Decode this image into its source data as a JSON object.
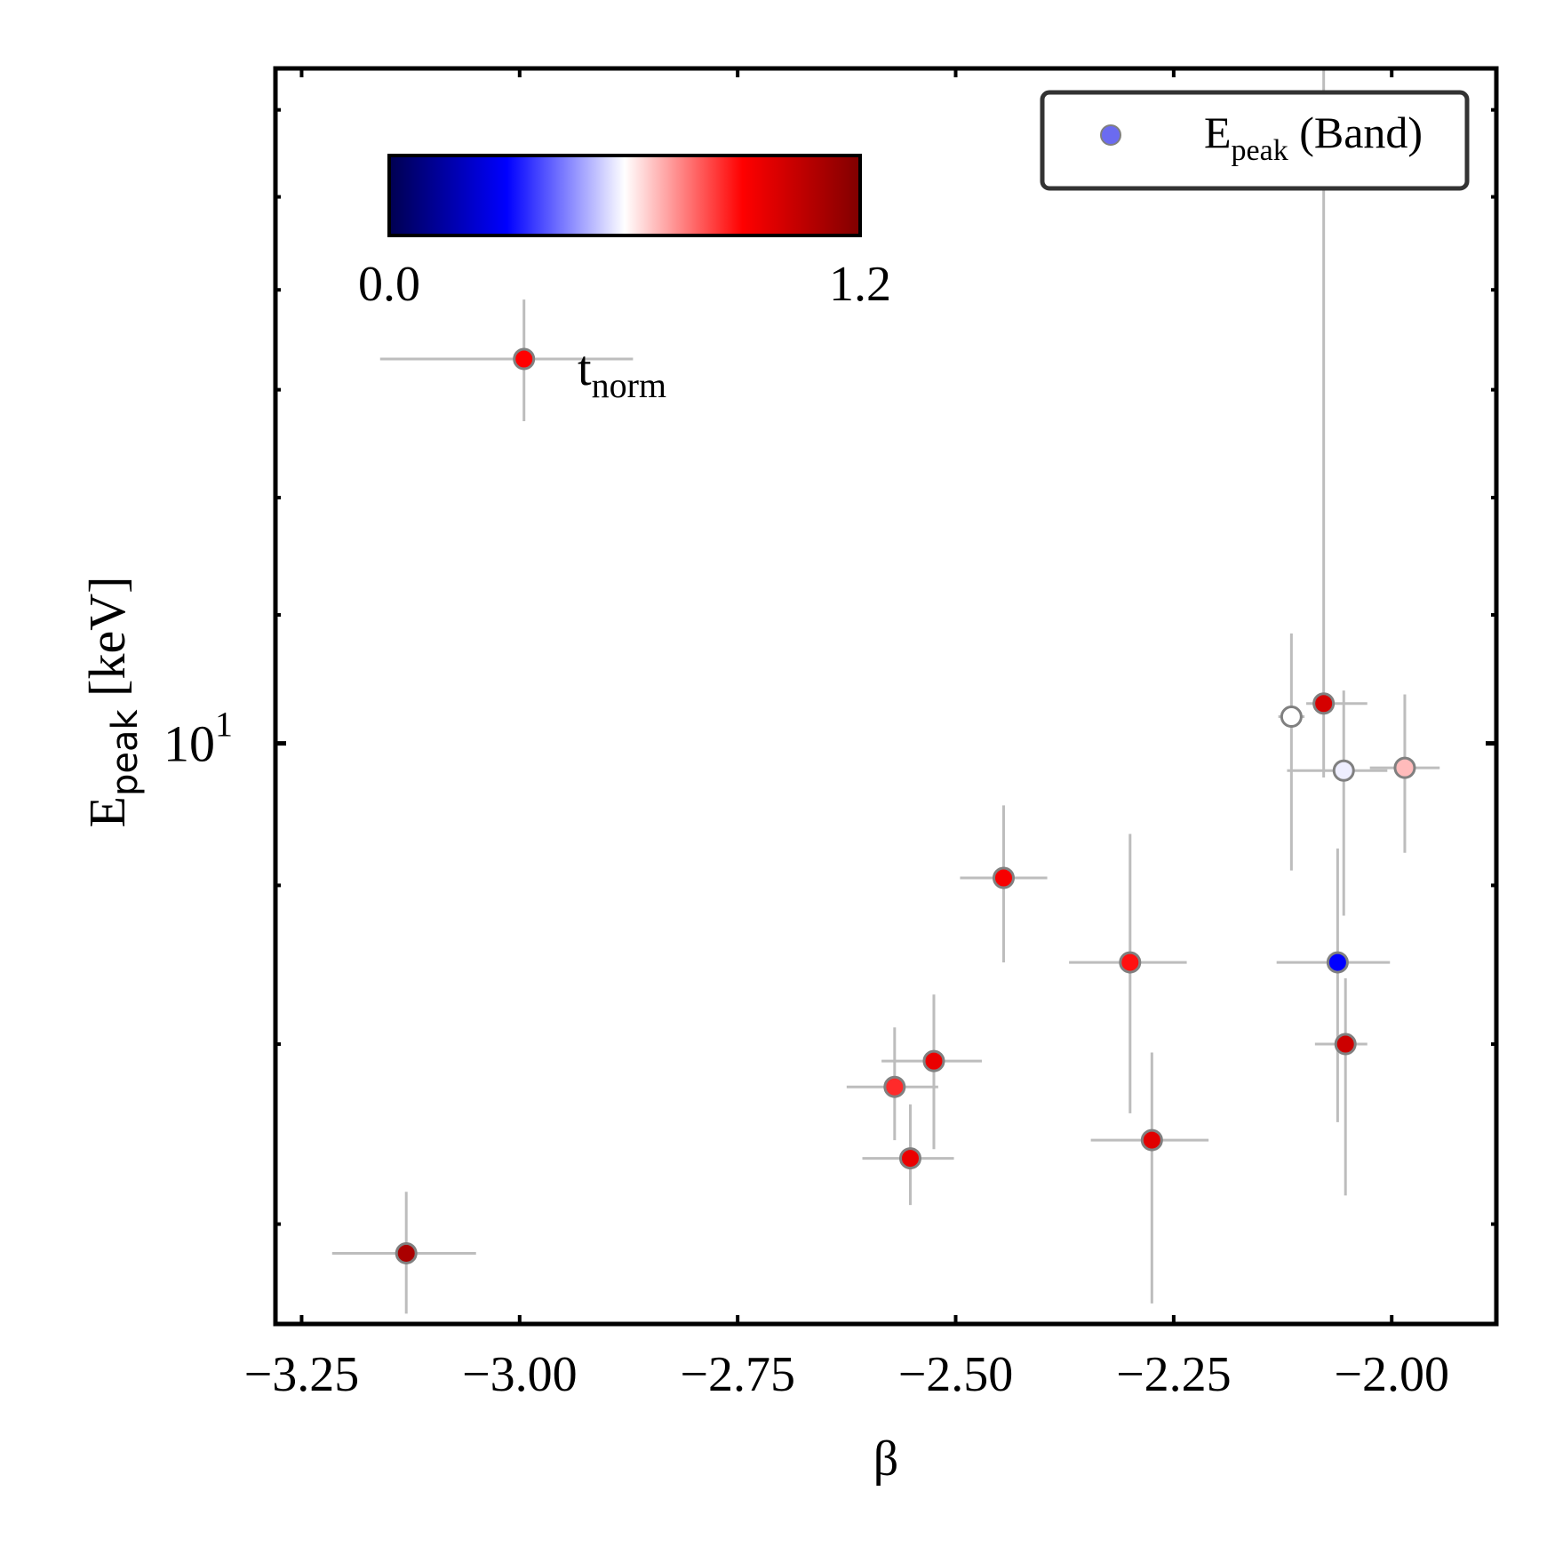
{
  "chart_data": {
    "type": "scatter",
    "title": "",
    "xlabel": "β",
    "ylabel": {
      "main": "E",
      "sub": "peak",
      "unit": " [keV]"
    },
    "xlim": [
      -3.28,
      -1.88
    ],
    "ylim": [
      6.5,
      16.5
    ],
    "yscale": "log",
    "xticks": [
      {
        "value": -3.25,
        "label": "−3.25"
      },
      {
        "value": -3.0,
        "label": "−3.00"
      },
      {
        "value": -2.75,
        "label": "−2.75"
      },
      {
        "value": -2.5,
        "label": "−2.50"
      },
      {
        "value": -2.25,
        "label": "−2.25"
      },
      {
        "value": -2.0,
        "label": "−2.00"
      }
    ],
    "yticks_major": [
      {
        "value": 10,
        "base": "10",
        "exp": "1"
      }
    ],
    "yticks_minor": [
      7,
      8,
      9,
      11,
      12,
      13,
      14,
      15,
      16
    ],
    "legend": {
      "label_main": "E",
      "label_sub": "peak",
      "label_rest": " (Band)",
      "marker_color": "#6b6bf0",
      "placement": "top-right"
    },
    "colorbar": {
      "label_main": "t",
      "label_sub": "norm",
      "min": 0.0,
      "max": 1.2,
      "min_label": "0.0",
      "max_label": "1.2",
      "colormap": "seismic",
      "stops": [
        "#000050",
        "#0000ff",
        "#ffffff",
        "#ff0000",
        "#800000"
      ],
      "placement": "top-left inset"
    },
    "errorbar_color": "#bdbdbd",
    "marker_edge_color": "#808080",
    "points": [
      {
        "x": -3.13,
        "y": 6.85,
        "xerr": [
          0.085,
          0.08
        ],
        "yerr": [
          0.3,
          0.32
        ],
        "t": 1.1
      },
      {
        "x": -2.995,
        "y": 13.3,
        "xerr": [
          0.165,
          0.125
        ],
        "yerr": [
          0.6,
          0.6
        ],
        "t": 0.9
      },
      {
        "x": -2.57,
        "y": 7.75,
        "xerr": [
          0.055,
          0.05
        ],
        "yerr": [
          0.3,
          0.35
        ],
        "t": 0.85
      },
      {
        "x": -2.552,
        "y": 7.35,
        "xerr": [
          0.055,
          0.05
        ],
        "yerr": [
          0.25,
          0.3
        ],
        "t": 0.95
      },
      {
        "x": -2.525,
        "y": 7.9,
        "xerr": [
          0.06,
          0.055
        ],
        "yerr": [
          0.5,
          0.4
        ],
        "t": 0.95
      },
      {
        "x": -2.445,
        "y": 9.05,
        "xerr": [
          0.05,
          0.05
        ],
        "yerr": [
          0.55,
          0.5
        ],
        "t": 0.92
      },
      {
        "x": -2.3,
        "y": 8.5,
        "xerr": [
          0.07,
          0.065
        ],
        "yerr": [
          0.9,
          0.85
        ],
        "t": 0.88
      },
      {
        "x": -2.275,
        "y": 7.45,
        "xerr": [
          0.07,
          0.065
        ],
        "yerr": [
          0.85,
          0.5
        ],
        "t": 0.97
      },
      {
        "x": -2.115,
        "y": 10.2,
        "xerr": [
          0.015,
          0.015
        ],
        "yerr": [
          1.1,
          0.65
        ],
        "t": 0.6
      },
      {
        "x": -2.078,
        "y": 10.3,
        "xerr": [
          0.02,
          0.05
        ],
        "yerr": [
          0.55,
          8.5
        ],
        "t": 1.0
      },
      {
        "x": -2.062,
        "y": 8.5,
        "xerr": [
          0.07,
          0.06
        ],
        "yerr": [
          0.95,
          0.75
        ],
        "t": 0.3
      },
      {
        "x": -2.055,
        "y": 9.8,
        "xerr": [
          0.065,
          0.05
        ],
        "yerr": [
          1.0,
          0.6
        ],
        "t": 0.58
      },
      {
        "x": -2.053,
        "y": 8.0,
        "xerr": [
          0.035,
          0.025
        ],
        "yerr": [
          0.85,
          0.4
        ],
        "t": 1.02
      },
      {
        "x": -1.985,
        "y": 9.82,
        "xerr": [
          0.04,
          0.04
        ],
        "yerr": [
          0.6,
          0.55
        ],
        "t": 0.68
      }
    ]
  }
}
